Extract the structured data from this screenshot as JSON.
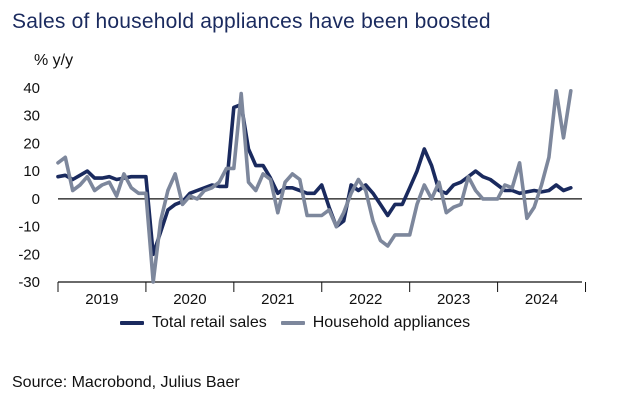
{
  "chart_data": {
    "type": "line",
    "title": "Sales of household appliances have been boosted",
    "ylabel": "% y/y",
    "xlabel": "",
    "ylim": [
      -30,
      40
    ],
    "yticks": [
      -30,
      -20,
      -10,
      0,
      10,
      20,
      30,
      40
    ],
    "xlim": [
      2019,
      2024.96
    ],
    "x_tick_labels": [
      "2019",
      "2020",
      "2021",
      "2022",
      "2023",
      "2024"
    ],
    "grid": false,
    "legend_position": "bottom",
    "x_start": 2019,
    "x_step": 0.08333,
    "series": [
      {
        "name": "Total retail sales",
        "color": "#1a2a5e",
        "values": [
          8,
          8.5,
          7,
          8.5,
          10,
          7.5,
          7.5,
          8,
          7,
          7.5,
          8,
          8,
          8,
          -20,
          -12,
          -4,
          -2,
          -1,
          2,
          3,
          4,
          5,
          4.5,
          4.5,
          33,
          34,
          18,
          12,
          12,
          7.5,
          2,
          4,
          4,
          3,
          2,
          2,
          5,
          -3,
          -10,
          -8,
          5,
          3,
          5,
          2,
          -2,
          -6,
          -2,
          -2,
          4,
          10,
          18,
          12,
          3,
          2,
          5,
          6,
          8,
          10,
          8,
          7,
          5,
          3,
          3,
          2,
          2.5,
          3,
          2.5,
          3,
          5,
          3,
          4
        ]
      },
      {
        "name": "Household appliances",
        "color": "#7d879c",
        "values": [
          13,
          15,
          3,
          5,
          8,
          3,
          5,
          6,
          1,
          9,
          4,
          2,
          2,
          -30,
          -8,
          3,
          9,
          -2,
          1,
          0,
          3,
          4,
          6,
          11,
          11,
          38,
          6,
          3,
          9,
          7,
          -5,
          6,
          9,
          7,
          -6,
          -6,
          -6,
          -4,
          -10,
          -5,
          2,
          7,
          3,
          -8,
          -15,
          -17,
          -13,
          -13,
          -13,
          -2,
          5,
          0,
          6,
          -5,
          -3,
          -2,
          8,
          3,
          0,
          0,
          0,
          5,
          4,
          13,
          -7,
          -3,
          5,
          15,
          39,
          22,
          39
        ]
      }
    ]
  },
  "source": "Source: Macrobond, Julius Baer"
}
